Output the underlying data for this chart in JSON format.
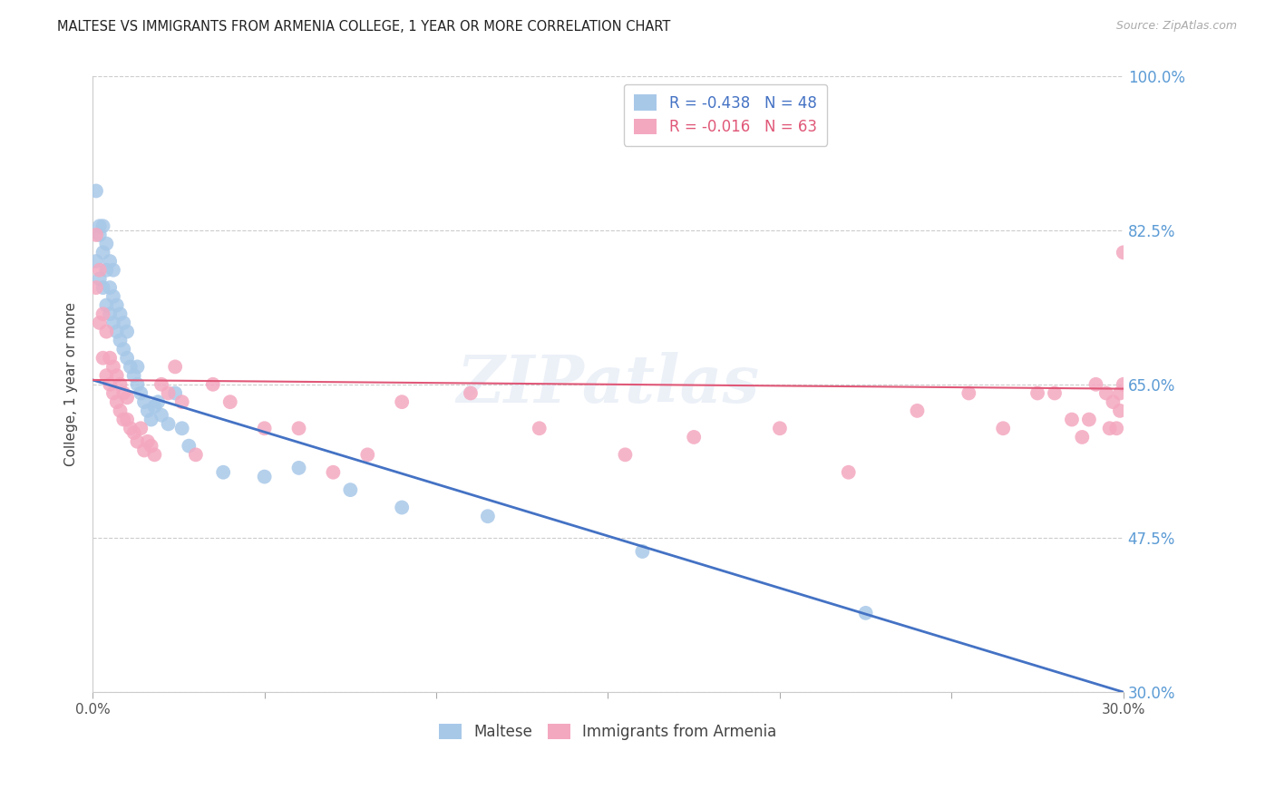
{
  "title": "MALTESE VS IMMIGRANTS FROM ARMENIA COLLEGE, 1 YEAR OR MORE CORRELATION CHART",
  "source": "Source: ZipAtlas.com",
  "ylabel": "College, 1 year or more",
  "xlim": [
    0.0,
    0.3
  ],
  "ylim": [
    0.3,
    1.0
  ],
  "yticks": [
    0.3,
    0.475,
    0.65,
    0.825,
    1.0
  ],
  "ytick_labels": [
    "30.0%",
    "47.5%",
    "65.0%",
    "82.5%",
    "100.0%"
  ],
  "xticks": [
    0.0,
    0.05,
    0.1,
    0.15,
    0.2,
    0.25,
    0.3
  ],
  "xtick_labels": [
    "0.0%",
    "",
    "",
    "",
    "",
    "",
    "30.0%"
  ],
  "blue_R": -0.438,
  "blue_N": 48,
  "pink_R": -0.016,
  "pink_N": 63,
  "blue_color": "#a8c8e8",
  "pink_color": "#f4a8c0",
  "blue_line_color": "#4472c4",
  "pink_line_color": "#e05878",
  "watermark": "ZIPatlas",
  "blue_points_x": [
    0.001,
    0.001,
    0.002,
    0.002,
    0.002,
    0.003,
    0.003,
    0.003,
    0.004,
    0.004,
    0.004,
    0.005,
    0.005,
    0.005,
    0.006,
    0.006,
    0.006,
    0.007,
    0.007,
    0.008,
    0.008,
    0.009,
    0.009,
    0.01,
    0.01,
    0.011,
    0.012,
    0.013,
    0.013,
    0.014,
    0.015,
    0.016,
    0.017,
    0.018,
    0.019,
    0.02,
    0.022,
    0.024,
    0.026,
    0.028,
    0.038,
    0.05,
    0.06,
    0.075,
    0.09,
    0.115,
    0.16,
    0.225
  ],
  "blue_points_y": [
    0.87,
    0.79,
    0.82,
    0.77,
    0.83,
    0.76,
    0.8,
    0.83,
    0.74,
    0.78,
    0.81,
    0.73,
    0.76,
    0.79,
    0.72,
    0.75,
    0.78,
    0.71,
    0.74,
    0.7,
    0.73,
    0.69,
    0.72,
    0.68,
    0.71,
    0.67,
    0.66,
    0.65,
    0.67,
    0.64,
    0.63,
    0.62,
    0.61,
    0.625,
    0.63,
    0.615,
    0.605,
    0.64,
    0.6,
    0.58,
    0.55,
    0.545,
    0.555,
    0.53,
    0.51,
    0.5,
    0.46,
    0.39
  ],
  "pink_points_x": [
    0.001,
    0.001,
    0.002,
    0.002,
    0.003,
    0.003,
    0.004,
    0.004,
    0.005,
    0.005,
    0.006,
    0.006,
    0.007,
    0.007,
    0.008,
    0.008,
    0.009,
    0.009,
    0.01,
    0.01,
    0.011,
    0.012,
    0.013,
    0.014,
    0.015,
    0.016,
    0.017,
    0.018,
    0.02,
    0.022,
    0.024,
    0.026,
    0.03,
    0.035,
    0.04,
    0.05,
    0.06,
    0.07,
    0.08,
    0.09,
    0.11,
    0.13,
    0.155,
    0.175,
    0.2,
    0.22,
    0.24,
    0.255,
    0.265,
    0.275,
    0.28,
    0.285,
    0.288,
    0.29,
    0.292,
    0.295,
    0.296,
    0.297,
    0.298,
    0.299,
    0.299,
    0.3,
    0.3
  ],
  "pink_points_y": [
    0.76,
    0.82,
    0.72,
    0.78,
    0.68,
    0.73,
    0.66,
    0.71,
    0.65,
    0.68,
    0.64,
    0.67,
    0.63,
    0.66,
    0.62,
    0.65,
    0.61,
    0.64,
    0.61,
    0.635,
    0.6,
    0.595,
    0.585,
    0.6,
    0.575,
    0.585,
    0.58,
    0.57,
    0.65,
    0.64,
    0.67,
    0.63,
    0.57,
    0.65,
    0.63,
    0.6,
    0.6,
    0.55,
    0.57,
    0.63,
    0.64,
    0.6,
    0.57,
    0.59,
    0.6,
    0.55,
    0.62,
    0.64,
    0.6,
    0.64,
    0.64,
    0.61,
    0.59,
    0.61,
    0.65,
    0.64,
    0.6,
    0.63,
    0.6,
    0.64,
    0.62,
    0.65,
    0.8
  ]
}
